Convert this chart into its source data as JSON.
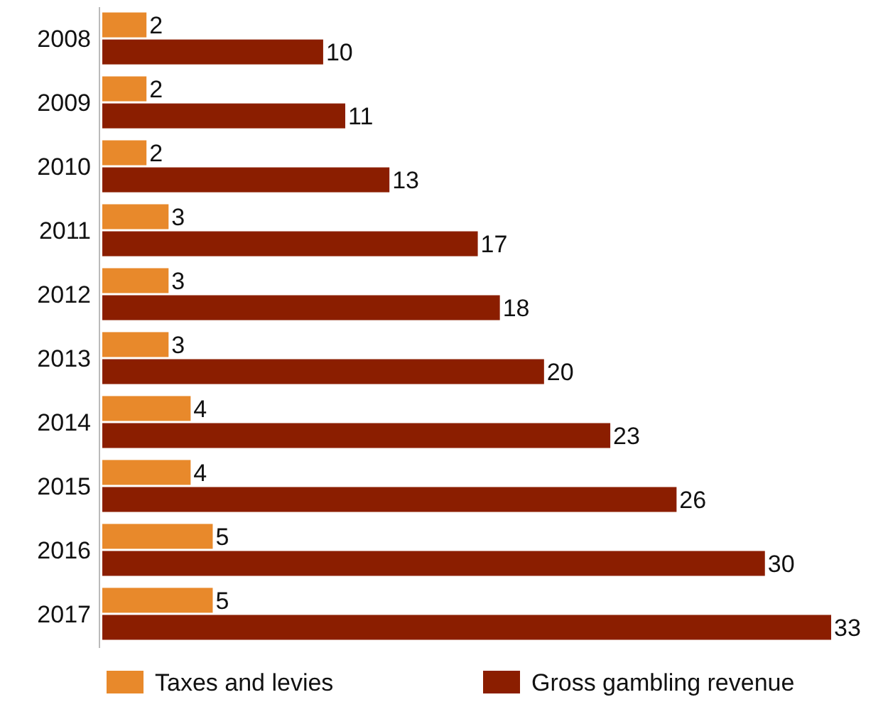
{
  "chart_data": {
    "type": "bar",
    "orientation": "horizontal",
    "categories": [
      "2008",
      "2009",
      "2010",
      "2011",
      "2012",
      "2013",
      "2014",
      "2015",
      "2016",
      "2017"
    ],
    "series": [
      {
        "name": "Taxes and levies",
        "color": "#e8892b",
        "values": [
          2,
          2,
          2,
          3,
          3,
          3,
          4,
          4,
          5,
          5
        ]
      },
      {
        "name": "Gross gambling revenue",
        "color": "#8b1e00",
        "values": [
          10,
          11,
          13,
          17,
          18,
          20,
          23,
          26,
          30,
          33
        ]
      }
    ],
    "data_labels": true,
    "legend": "bottom"
  }
}
